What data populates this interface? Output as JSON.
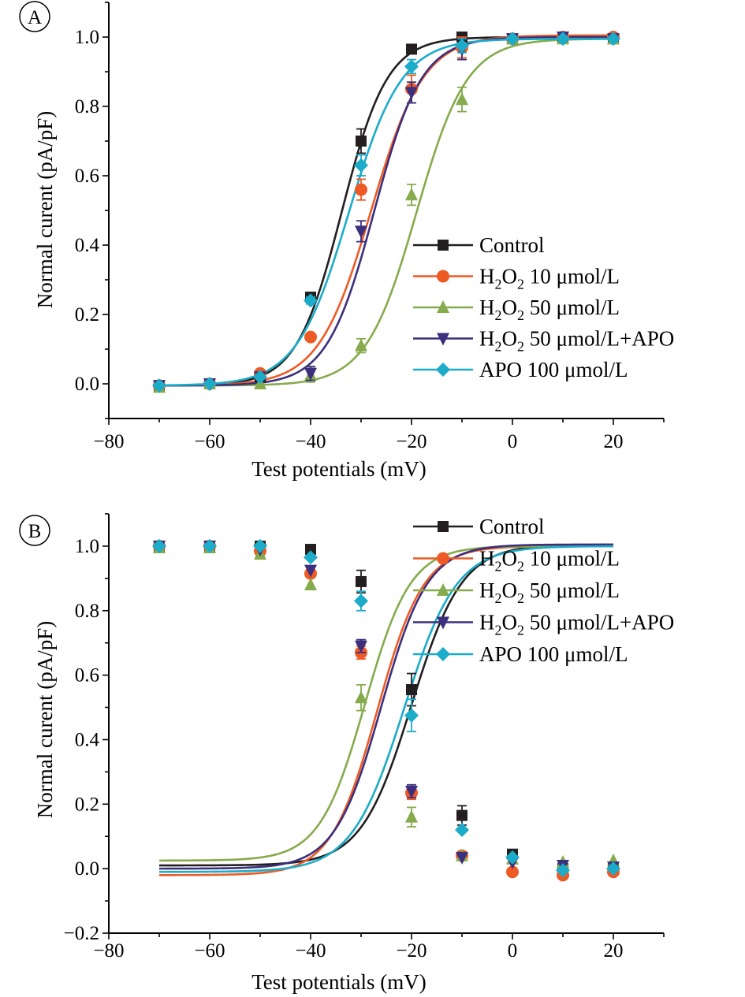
{
  "chart_data": [
    {
      "type": "line",
      "panel_label": "A",
      "xlabel": "Test potentials (mV)",
      "ylabel": "Normal curent (pA/pF)",
      "xlim": [
        -80,
        30
      ],
      "ylim": [
        -0.1,
        1.1
      ],
      "x_ticks": [
        -80,
        -60,
        -40,
        -20,
        0,
        20
      ],
      "x_tick_labels": [
        "−80",
        "−60",
        "−40",
        "−20",
        "0",
        "20"
      ],
      "y_ticks": [
        0.0,
        0.2,
        0.4,
        0.6,
        0.8,
        1.0
      ],
      "y_tick_labels": [
        "0.0",
        "0.2",
        "0.4",
        "0.6",
        "0.8",
        "1.0"
      ],
      "x": [
        -70,
        -60,
        -50,
        -40,
        -30,
        -20,
        -10,
        0,
        10,
        20
      ],
      "grid": false,
      "legend_position": "right",
      "series": [
        {
          "name": "Control",
          "legend": {
            "main": "Control"
          },
          "color": "#231f20",
          "marker": "square",
          "values": [
            -0.005,
            0.0,
            0.02,
            0.25,
            0.7,
            0.965,
            1.0,
            0.995,
            1.0,
            0.995
          ],
          "errors": [
            0.0,
            0.0,
            0.0,
            0.01,
            0.035,
            0.01,
            0.01,
            0.0,
            0.0,
            0.0
          ],
          "fit": {
            "half": -33.8,
            "slope": 4.5,
            "low": -0.005,
            "high": 1.0
          }
        },
        {
          "name": "H2O2 10 μmol/L",
          "legend": {
            "main": "H",
            "sub1": "2",
            "mid": "O",
            "sub2": "2",
            "rest": " 10 μmol/L"
          },
          "color": "#ee5a24",
          "marker": "circle",
          "values": [
            -0.005,
            0.0,
            0.03,
            0.135,
            0.56,
            0.85,
            0.97,
            0.995,
            1.0,
            1.0
          ],
          "errors": [
            0.0,
            0.0,
            0.0,
            0.0,
            0.03,
            0.04,
            0.03,
            0.0,
            0.0,
            0.0
          ],
          "fit": {
            "half": -28.0,
            "slope": 5.2,
            "low": -0.005,
            "high": 1.005
          }
        },
        {
          "name": "H2O2 50 μmol/L",
          "legend": {
            "main": "H",
            "sub1": "2",
            "mid": "O",
            "sub2": "2",
            "rest": " 50 μmol/L"
          },
          "color": "#85ab4c",
          "marker": "triangle-up",
          "values": [
            -0.01,
            0.0,
            0.0,
            0.025,
            0.11,
            0.545,
            0.82,
            0.995,
            0.995,
            0.995
          ],
          "errors": [
            0.0,
            0.0,
            0.0,
            0.02,
            0.02,
            0.03,
            0.035,
            0.0,
            0.0,
            0.0
          ],
          "fit": {
            "half": -19.0,
            "slope": 5.0,
            "low": -0.005,
            "high": 0.995
          }
        },
        {
          "name": "H2O2 50 μmol/L+APO",
          "legend": {
            "main": "H",
            "sub1": "2",
            "mid": "O",
            "sub2": "2",
            "rest": " 50 μmol/L+APO"
          },
          "color": "#3c2f7e",
          "marker": "triangle-down",
          "values": [
            -0.005,
            0.0,
            0.02,
            0.03,
            0.44,
            0.84,
            0.965,
            0.995,
            1.0,
            0.995
          ],
          "errors": [
            0.0,
            0.0,
            0.0,
            0.02,
            0.03,
            0.03,
            0.03,
            0.0,
            0.0,
            0.0
          ],
          "fit": {
            "half": -27.4,
            "slope": 4.7,
            "low": -0.005,
            "high": 1.0
          }
        },
        {
          "name": "APO 100 μmol/L",
          "legend": {
            "main": "APO 100 μmol/L"
          },
          "color": "#1cabc8",
          "marker": "diamond",
          "values": [
            -0.005,
            0.0,
            0.02,
            0.24,
            0.63,
            0.915,
            0.975,
            0.995,
            0.995,
            0.995
          ],
          "errors": [
            0.0,
            0.0,
            0.0,
            0.01,
            0.03,
            0.02,
            0.02,
            0.0,
            0.0,
            0.0
          ],
          "fit": {
            "half": -32.4,
            "slope": 5.2,
            "low": -0.005,
            "high": 0.995
          }
        }
      ]
    },
    {
      "type": "line",
      "panel_label": "B",
      "xlabel": "Test potentials (mV)",
      "ylabel": "Normal curent (pA/pF)",
      "xlim": [
        -80,
        30
      ],
      "ylim": [
        -0.2,
        1.1
      ],
      "x_ticks": [
        -80,
        -60,
        -40,
        -20,
        0,
        20
      ],
      "x_tick_labels": [
        "−80",
        "−60",
        "−40",
        "−20",
        "0",
        "20"
      ],
      "y_ticks": [
        -0.2,
        0.0,
        0.2,
        0.4,
        0.6,
        0.8,
        1.0
      ],
      "y_tick_labels": [
        "−0.2",
        "0.0",
        "0.2",
        "0.4",
        "0.6",
        "0.8",
        "1.0"
      ],
      "x": [
        -70,
        -60,
        -50,
        -40,
        -30,
        -20,
        -10,
        0,
        10,
        20
      ],
      "grid": false,
      "legend_position": "top-right",
      "series": [
        {
          "name": "Control",
          "legend": {
            "main": "Control"
          },
          "color": "#231f20",
          "marker": "square",
          "values": [
            1.0,
            1.0,
            1.0,
            0.99,
            0.89,
            0.555,
            0.165,
            0.045,
            0.0,
            0.0
          ],
          "errors": [
            0.0,
            0.0,
            0.0,
            0.0,
            0.035,
            0.05,
            0.03,
            0.0,
            0.0,
            0.0
          ],
          "fit": {
            "half": -20.0,
            "slope": 5.0,
            "low": 0.01,
            "high": 1.005
          }
        },
        {
          "name": "H2O2 10 μmol/L",
          "legend": {
            "main": "H",
            "sub1": "2",
            "mid": "O",
            "sub2": "2",
            "rest": " 10 μmol/L"
          },
          "color": "#ee5a24",
          "marker": "circle",
          "values": [
            1.0,
            1.0,
            0.985,
            0.915,
            0.67,
            0.235,
            0.04,
            -0.01,
            -0.02,
            -0.01
          ],
          "errors": [
            0.0,
            0.0,
            0.0,
            0.0,
            0.02,
            0.02,
            0.0,
            0.0,
            0.0,
            0.0
          ],
          "fit": {
            "half": -26.8,
            "slope": 4.6,
            "low": -0.02,
            "high": 1.0
          }
        },
        {
          "name": "H2O2 50 μmol/L",
          "legend": {
            "main": "H",
            "sub1": "2",
            "mid": "O",
            "sub2": "2",
            "rest": " 50 μmol/L"
          },
          "color": "#85ab4c",
          "marker": "triangle-up",
          "values": [
            0.995,
            0.995,
            0.975,
            0.88,
            0.53,
            0.16,
            0.04,
            0.03,
            0.02,
            0.025
          ],
          "errors": [
            0.0,
            0.0,
            0.0,
            0.0,
            0.04,
            0.03,
            0.0,
            0.0,
            0.0,
            0.0
          ],
          "fit": {
            "half": -29.2,
            "slope": 4.5,
            "low": 0.025,
            "high": 1.0
          }
        },
        {
          "name": "H2O2 50 μmol/L+APO",
          "legend": {
            "main": "H",
            "sub1": "2",
            "mid": "O",
            "sub2": "2",
            "rest": " 50 μmol/L+APO"
          },
          "color": "#3c2f7e",
          "marker": "triangle-down",
          "values": [
            1.0,
            1.0,
            0.99,
            0.925,
            0.69,
            0.24,
            0.035,
            0.02,
            0.01,
            0.005
          ],
          "errors": [
            0.0,
            0.0,
            0.0,
            0.0,
            0.02,
            0.02,
            0.0,
            0.0,
            0.0,
            0.0
          ],
          "fit": {
            "half": -26.0,
            "slope": 4.6,
            "low": 0.0,
            "high": 1.005
          }
        },
        {
          "name": "APO 100 μmol/L",
          "legend": {
            "main": "APO 100 μmol/L"
          },
          "color": "#1cabc8",
          "marker": "diamond",
          "values": [
            1.0,
            1.0,
            1.0,
            0.965,
            0.83,
            0.475,
            0.12,
            0.035,
            -0.005,
            0.0
          ],
          "errors": [
            0.0,
            0.0,
            0.0,
            0.0,
            0.03,
            0.05,
            0.0,
            0.0,
            0.0,
            0.0
          ],
          "fit": {
            "half": -21.5,
            "slope": 5.2,
            "low": -0.01,
            "high": 1.0
          }
        }
      ]
    }
  ]
}
